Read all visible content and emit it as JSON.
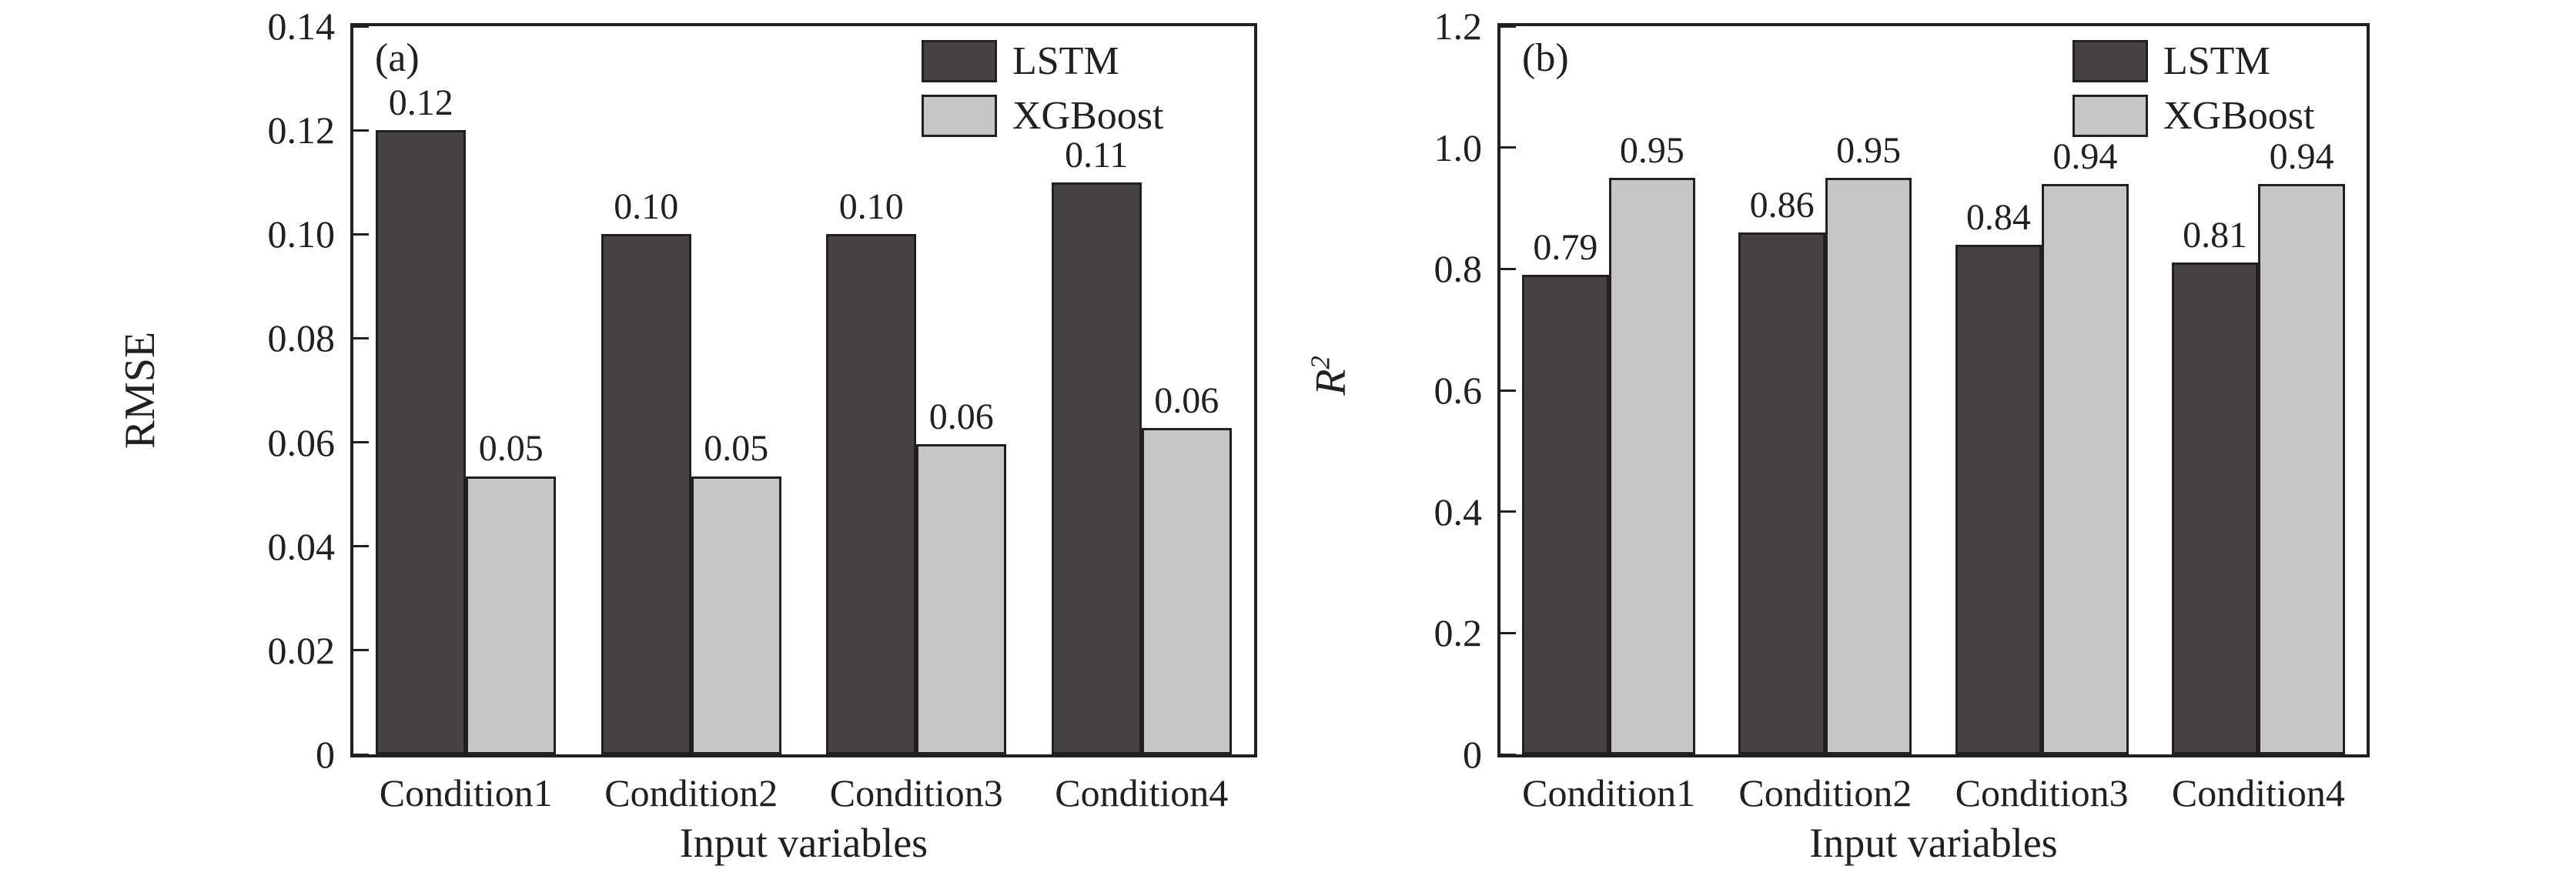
{
  "style": {
    "background": "#ffffff",
    "ink": "#231f20",
    "bar_colors": {
      "LSTM": "#474345",
      "XGBoost": "#c6c6c6"
    }
  },
  "chart_data": [
    {
      "type": "bar",
      "panel_label": "(a)",
      "xlabel": "Input variables",
      "ylabel": "RMSE",
      "ylabel_sup": "",
      "ylabel_italic": false,
      "ylim": [
        0,
        0.14
      ],
      "ytick_labels": [
        "0.14",
        "0.12",
        "0.10",
        "0.08",
        "0.06",
        "0.04",
        "0.02",
        "0"
      ],
      "ytick_values": [
        0.14,
        0.12,
        0.1,
        0.08,
        0.06,
        0.04,
        0.02,
        0
      ],
      "categories": [
        "Condition1",
        "Condition2",
        "Condition3",
        "Condition4"
      ],
      "grid": false,
      "legend": {
        "position": "top-right-inside",
        "entries": [
          "LSTM",
          "XGBoost"
        ]
      },
      "series": [
        {
          "name": "LSTM",
          "values": [
            0.12,
            0.1,
            0.1,
            0.11
          ],
          "data_labels": [
            "0.12",
            "0.10",
            "0.10",
            "0.11"
          ],
          "drawn_values": [
            0.12,
            0.1,
            0.1,
            0.11
          ]
        },
        {
          "name": "XGBoost",
          "values": [
            0.05,
            0.05,
            0.06,
            0.06
          ],
          "data_labels": [
            "0.05",
            "0.05",
            "0.06",
            "0.06"
          ],
          "drawn_values": [
            0.0535,
            0.0535,
            0.0597,
            0.0627
          ]
        }
      ]
    },
    {
      "type": "bar",
      "panel_label": "(b)",
      "xlabel": "Input variables",
      "ylabel": "R",
      "ylabel_sup": "2",
      "ylabel_italic": true,
      "ylim": [
        0,
        1.2
      ],
      "ytick_labels": [
        "1.2",
        "1.0",
        "0.8",
        "0.6",
        "0.4",
        "0.2",
        "0"
      ],
      "ytick_values": [
        1.2,
        1.0,
        0.8,
        0.6,
        0.4,
        0.2,
        0
      ],
      "categories": [
        "Condition1",
        "Condition2",
        "Condition3",
        "Condition4"
      ],
      "grid": false,
      "legend": {
        "position": "top-right-inside",
        "entries": [
          "LSTM",
          "XGBoost"
        ]
      },
      "series": [
        {
          "name": "LSTM",
          "values": [
            0.79,
            0.86,
            0.84,
            0.81
          ],
          "data_labels": [
            "0.79",
            "0.86",
            "0.84",
            "0.81"
          ],
          "drawn_values": [
            0.79,
            0.86,
            0.84,
            0.81
          ]
        },
        {
          "name": "XGBoost",
          "values": [
            0.95,
            0.95,
            0.94,
            0.94
          ],
          "data_labels": [
            "0.95",
            "0.95",
            "0.94",
            "0.94"
          ],
          "drawn_values": [
            0.95,
            0.95,
            0.94,
            0.94
          ]
        }
      ]
    }
  ]
}
